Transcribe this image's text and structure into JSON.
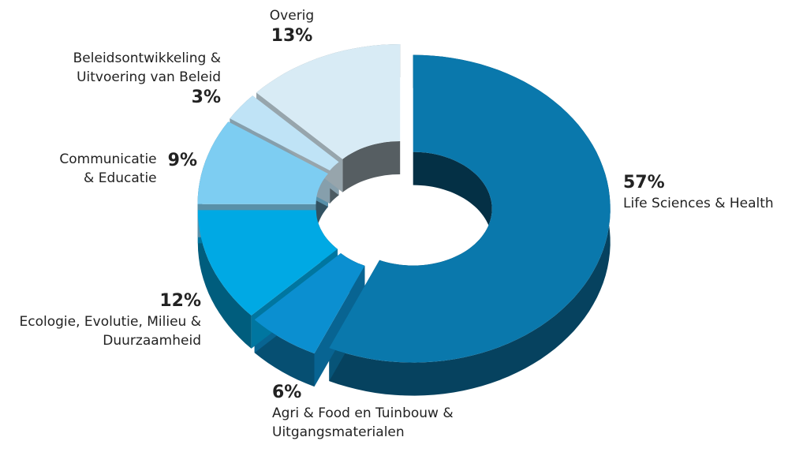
{
  "chart_data": {
    "type": "donut3d",
    "categories": [
      "Life Sciences & Health",
      "Agri & Food en Tuinbouw & Uitgangsmaterialen",
      "Ecologie, Evolutie, Milieu & Duurzaamheid",
      "Communicatie & Educatie",
      "Beleidsontwikkeling & Uitvoering van Beleid",
      "Overig"
    ],
    "values": [
      57,
      6,
      12,
      9,
      3,
      13
    ],
    "value_labels": [
      "57%",
      "6%",
      "12%",
      "9%",
      "3%",
      "13%"
    ],
    "colors": [
      "#0a78ac",
      "#0b8fd0",
      "#00a9e4",
      "#7dcdf2",
      "#bfe3f6",
      "#d8ebf5"
    ]
  }
}
